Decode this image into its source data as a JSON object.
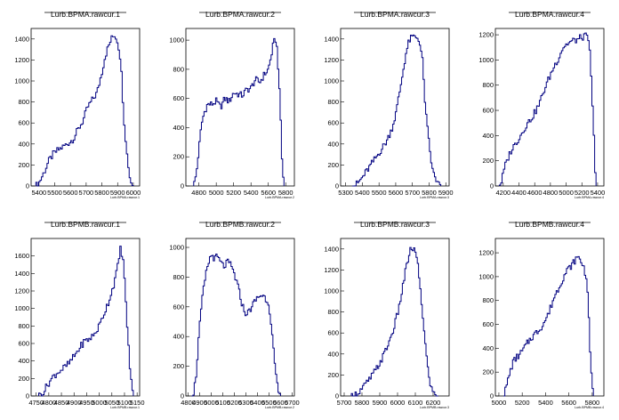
{
  "chart_data": [
    {
      "type": "histogram",
      "title": "Lurb.BPMA.rawcur.1",
      "xlabel": "Lurb.BPMA.rawcur.1",
      "xlim": [
        5350,
        6040
      ],
      "ylim": [
        0,
        1500
      ],
      "xticks": [
        "5400",
        "5500",
        "5600",
        "5700",
        "5800",
        "5900",
        "6000"
      ],
      "yticks": [
        "0",
        "200",
        "400",
        "600",
        "800",
        "1000",
        "1200",
        "1400"
      ],
      "xtickvals": [
        5400,
        5500,
        5600,
        5700,
        5800,
        5900,
        6000
      ],
      "ytickvals": [
        0,
        200,
        400,
        600,
        800,
        1000,
        1200,
        1400
      ],
      "points": [
        [
          5380,
          0
        ],
        [
          5400,
          30
        ],
        [
          5430,
          120
        ],
        [
          5460,
          230
        ],
        [
          5490,
          300
        ],
        [
          5520,
          340
        ],
        [
          5550,
          370
        ],
        [
          5580,
          400
        ],
        [
          5620,
          450
        ],
        [
          5650,
          540
        ],
        [
          5680,
          620
        ],
        [
          5710,
          750
        ],
        [
          5740,
          820
        ],
        [
          5770,
          890
        ],
        [
          5800,
          1080
        ],
        [
          5820,
          1230
        ],
        [
          5840,
          1320
        ],
        [
          5860,
          1400
        ],
        [
          5880,
          1440
        ],
        [
          5900,
          1380
        ],
        [
          5920,
          1200
        ],
        [
          5940,
          650
        ],
        [
          5960,
          300
        ],
        [
          5980,
          60
        ],
        [
          6000,
          0
        ]
      ]
    },
    {
      "type": "histogram",
      "title": "Lurb.BPMA.rawcur.2",
      "xlabel": "Lurb.BPMA.rawcur.2",
      "xlim": [
        4650,
        5900
      ],
      "ylim": [
        0,
        1080
      ],
      "xticks": [
        "4800",
        "5000",
        "5200",
        "5400",
        "5600",
        "5800"
      ],
      "yticks": [
        "0",
        "200",
        "400",
        "600",
        "800",
        "1000"
      ],
      "xtickvals": [
        4800,
        5000,
        5200,
        5400,
        5600,
        5800
      ],
      "ytickvals": [
        0,
        200,
        400,
        600,
        800,
        1000
      ],
      "points": [
        [
          4740,
          0
        ],
        [
          4770,
          80
        ],
        [
          4800,
          250
        ],
        [
          4830,
          420
        ],
        [
          4860,
          500
        ],
        [
          4900,
          560
        ],
        [
          4950,
          560
        ],
        [
          5000,
          580
        ],
        [
          5050,
          540
        ],
        [
          5100,
          600
        ],
        [
          5150,
          580
        ],
        [
          5200,
          640
        ],
        [
          5250,
          630
        ],
        [
          5300,
          620
        ],
        [
          5350,
          660
        ],
        [
          5400,
          670
        ],
        [
          5450,
          730
        ],
        [
          5500,
          710
        ],
        [
          5550,
          760
        ],
        [
          5600,
          800
        ],
        [
          5630,
          880
        ],
        [
          5660,
          980
        ],
        [
          5690,
          1010
        ],
        [
          5710,
          860
        ],
        [
          5740,
          500
        ],
        [
          5760,
          150
        ],
        [
          5780,
          0
        ]
      ]
    },
    {
      "type": "histogram",
      "title": "Lurb.BPMA.rawcur.3",
      "xlabel": "Lurb.BPMA.rawcur.3",
      "xlim": [
        5270,
        5920
      ],
      "ylim": [
        0,
        1500
      ],
      "xticks": [
        "5300",
        "5400",
        "5500",
        "5600",
        "5700",
        "5800",
        "5900"
      ],
      "yticks": [
        "0",
        "200",
        "400",
        "600",
        "800",
        "1000",
        "1200",
        "1400"
      ],
      "xtickvals": [
        5300,
        5400,
        5500,
        5600,
        5700,
        5800,
        5900
      ],
      "ytickvals": [
        0,
        200,
        400,
        600,
        800,
        1000,
        1200,
        1400
      ],
      "points": [
        [
          5340,
          0
        ],
        [
          5370,
          20
        ],
        [
          5400,
          80
        ],
        [
          5430,
          150
        ],
        [
          5460,
          220
        ],
        [
          5490,
          290
        ],
        [
          5520,
          360
        ],
        [
          5550,
          440
        ],
        [
          5580,
          560
        ],
        [
          5600,
          680
        ],
        [
          5620,
          860
        ],
        [
          5640,
          1050
        ],
        [
          5660,
          1250
        ],
        [
          5680,
          1380
        ],
        [
          5700,
          1420
        ],
        [
          5720,
          1420
        ],
        [
          5740,
          1400
        ],
        [
          5760,
          1200
        ],
        [
          5780,
          700
        ],
        [
          5800,
          400
        ],
        [
          5820,
          150
        ],
        [
          5850,
          30
        ],
        [
          5870,
          0
        ]
      ]
    },
    {
      "type": "histogram",
      "title": "Lurb.BPMA.rawcur.4",
      "xlabel": "Lurb.BPMA.rawcur.4",
      "xlim": [
        4100,
        5480
      ],
      "ylim": [
        0,
        1250
      ],
      "xticks": [
        "4200",
        "4400",
        "4600",
        "4800",
        "5000",
        "5200",
        "5400"
      ],
      "yticks": [
        "0",
        "200",
        "400",
        "600",
        "800",
        "1000",
        "1200"
      ],
      "xtickvals": [
        4200,
        4400,
        4600,
        4800,
        5000,
        5200,
        5400
      ],
      "ytickvals": [
        0,
        200,
        400,
        600,
        800,
        1000,
        1200
      ],
      "points": [
        [
          4150,
          0
        ],
        [
          4180,
          40
        ],
        [
          4220,
          150
        ],
        [
          4260,
          220
        ],
        [
          4300,
          280
        ],
        [
          4360,
          340
        ],
        [
          4420,
          400
        ],
        [
          4480,
          470
        ],
        [
          4540,
          520
        ],
        [
          4600,
          580
        ],
        [
          4660,
          650
        ],
        [
          4720,
          760
        ],
        [
          4780,
          850
        ],
        [
          4840,
          940
        ],
        [
          4900,
          1010
        ],
        [
          4960,
          1100
        ],
        [
          5020,
          1130
        ],
        [
          5080,
          1150
        ],
        [
          5140,
          1160
        ],
        [
          5200,
          1180
        ],
        [
          5260,
          1190
        ],
        [
          5300,
          1100
        ],
        [
          5330,
          700
        ],
        [
          5360,
          300
        ],
        [
          5380,
          0
        ]
      ]
    },
    {
      "type": "histogram",
      "title": "Lurb.BPMB.rawcur.1",
      "xlabel": "Lurb.BPMB.rawcur.1",
      "xlim": [
        4730,
        5160
      ],
      "ylim": [
        0,
        1800
      ],
      "xticks": [
        "4750",
        "4800",
        "4850",
        "4900",
        "4950",
        "5000",
        "5050",
        "5100",
        "5150"
      ],
      "yticks": [
        "0",
        "200",
        "400",
        "600",
        "800",
        "1000",
        "1200",
        "1400",
        "1600"
      ],
      "xtickvals": [
        4750,
        4800,
        4850,
        4900,
        4950,
        5000,
        5050,
        5100,
        5150
      ],
      "ytickvals": [
        0,
        200,
        400,
        600,
        800,
        1000,
        1200,
        1400,
        1600
      ],
      "points": [
        [
          4760,
          0
        ],
        [
          4780,
          50
        ],
        [
          4800,
          150
        ],
        [
          4820,
          230
        ],
        [
          4840,
          280
        ],
        [
          4860,
          320
        ],
        [
          4880,
          370
        ],
        [
          4900,
          450
        ],
        [
          4920,
          540
        ],
        [
          4940,
          620
        ],
        [
          4960,
          650
        ],
        [
          4980,
          700
        ],
        [
          5000,
          800
        ],
        [
          5020,
          950
        ],
        [
          5040,
          1100
        ],
        [
          5060,
          1300
        ],
        [
          5075,
          1500
        ],
        [
          5085,
          1700
        ],
        [
          5095,
          1550
        ],
        [
          5105,
          1100
        ],
        [
          5115,
          600
        ],
        [
          5125,
          200
        ],
        [
          5135,
          0
        ]
      ]
    },
    {
      "type": "histogram",
      "title": "Lurb.BPMB.rawcur.2",
      "xlabel": "Lurb.BPMB.rawcur.2",
      "xlim": [
        4780,
        5720
      ],
      "ylim": [
        0,
        1060
      ],
      "xticks": [
        "4800",
        "4900",
        "5000",
        "5100",
        "5200",
        "5300",
        "5400",
        "5500",
        "5600",
        "5700"
      ],
      "yticks": [
        "0",
        "200",
        "400",
        "600",
        "800",
        "1000"
      ],
      "xtickvals": [
        4800,
        4900,
        5000,
        5100,
        5200,
        5300,
        5400,
        5500,
        5600,
        5700
      ],
      "ytickvals": [
        0,
        200,
        400,
        600,
        800,
        1000
      ],
      "points": [
        [
          4830,
          0
        ],
        [
          4850,
          30
        ],
        [
          4870,
          150
        ],
        [
          4890,
          380
        ],
        [
          4910,
          560
        ],
        [
          4930,
          700
        ],
        [
          4950,
          800
        ],
        [
          4970,
          880
        ],
        [
          4990,
          930
        ],
        [
          5010,
          950
        ],
        [
          5030,
          920
        ],
        [
          5050,
          940
        ],
        [
          5080,
          900
        ],
        [
          5110,
          870
        ],
        [
          5140,
          900
        ],
        [
          5170,
          880
        ],
        [
          5200,
          820
        ],
        [
          5230,
          740
        ],
        [
          5260,
          640
        ],
        [
          5290,
          560
        ],
        [
          5320,
          560
        ],
        [
          5350,
          600
        ],
        [
          5380,
          640
        ],
        [
          5410,
          670
        ],
        [
          5440,
          680
        ],
        [
          5470,
          660
        ],
        [
          5500,
          620
        ],
        [
          5520,
          480
        ],
        [
          5540,
          300
        ],
        [
          5560,
          130
        ],
        [
          5580,
          30
        ],
        [
          5600,
          0
        ]
      ]
    },
    {
      "type": "histogram",
      "title": "Lurb.BPMB.rawcur.3",
      "xlabel": "Lurb.BPMB.rawcur.3",
      "xlim": [
        5680,
        6290
      ],
      "ylim": [
        0,
        1500
      ],
      "xticks": [
        "5700",
        "5800",
        "5900",
        "6000",
        "6100",
        "6200"
      ],
      "yticks": [
        "0",
        "200",
        "400",
        "600",
        "800",
        "1000",
        "1200",
        "1400"
      ],
      "xtickvals": [
        5700,
        5800,
        5900,
        6000,
        6100,
        6200
      ],
      "ytickvals": [
        0,
        200,
        400,
        600,
        800,
        1000,
        1200,
        1400
      ],
      "points": [
        [
          5740,
          0
        ],
        [
          5770,
          20
        ],
        [
          5800,
          70
        ],
        [
          5830,
          130
        ],
        [
          5860,
          200
        ],
        [
          5890,
          280
        ],
        [
          5920,
          380
        ],
        [
          5950,
          500
        ],
        [
          5980,
          650
        ],
        [
          6010,
          850
        ],
        [
          6030,
          1050
        ],
        [
          6050,
          1230
        ],
        [
          6070,
          1380
        ],
        [
          6090,
          1410
        ],
        [
          6110,
          1300
        ],
        [
          6130,
          1000
        ],
        [
          6150,
          600
        ],
        [
          6170,
          260
        ],
        [
          6190,
          70
        ],
        [
          6210,
          10
        ],
        [
          6230,
          0
        ]
      ]
    },
    {
      "type": "histogram",
      "title": "Lurb.BPMB.rawcur.4",
      "xlabel": "Lurb.BPMB.rawcur.4",
      "xlim": [
        4970,
        5900
      ],
      "ylim": [
        0,
        1320
      ],
      "xticks": [
        "5000",
        "5200",
        "5400",
        "5600",
        "5800"
      ],
      "yticks": [
        "0",
        "200",
        "400",
        "600",
        "800",
        "1000",
        "1200"
      ],
      "xtickvals": [
        5000,
        5200,
        5400,
        5600,
        5800
      ],
      "ytickvals": [
        0,
        200,
        400,
        600,
        800,
        1000,
        1200
      ],
      "points": [
        [
          5040,
          0
        ],
        [
          5060,
          60
        ],
        [
          5090,
          180
        ],
        [
          5120,
          280
        ],
        [
          5150,
          320
        ],
        [
          5190,
          360
        ],
        [
          5230,
          420
        ],
        [
          5270,
          480
        ],
        [
          5310,
          520
        ],
        [
          5350,
          560
        ],
        [
          5390,
          620
        ],
        [
          5430,
          700
        ],
        [
          5470,
          820
        ],
        [
          5510,
          900
        ],
        [
          5550,
          990
        ],
        [
          5590,
          1060
        ],
        [
          5630,
          1100
        ],
        [
          5660,
          1150
        ],
        [
          5690,
          1160
        ],
        [
          5720,
          1100
        ],
        [
          5750,
          1000
        ],
        [
          5770,
          700
        ],
        [
          5790,
          200
        ],
        [
          5810,
          0
        ]
      ]
    }
  ]
}
